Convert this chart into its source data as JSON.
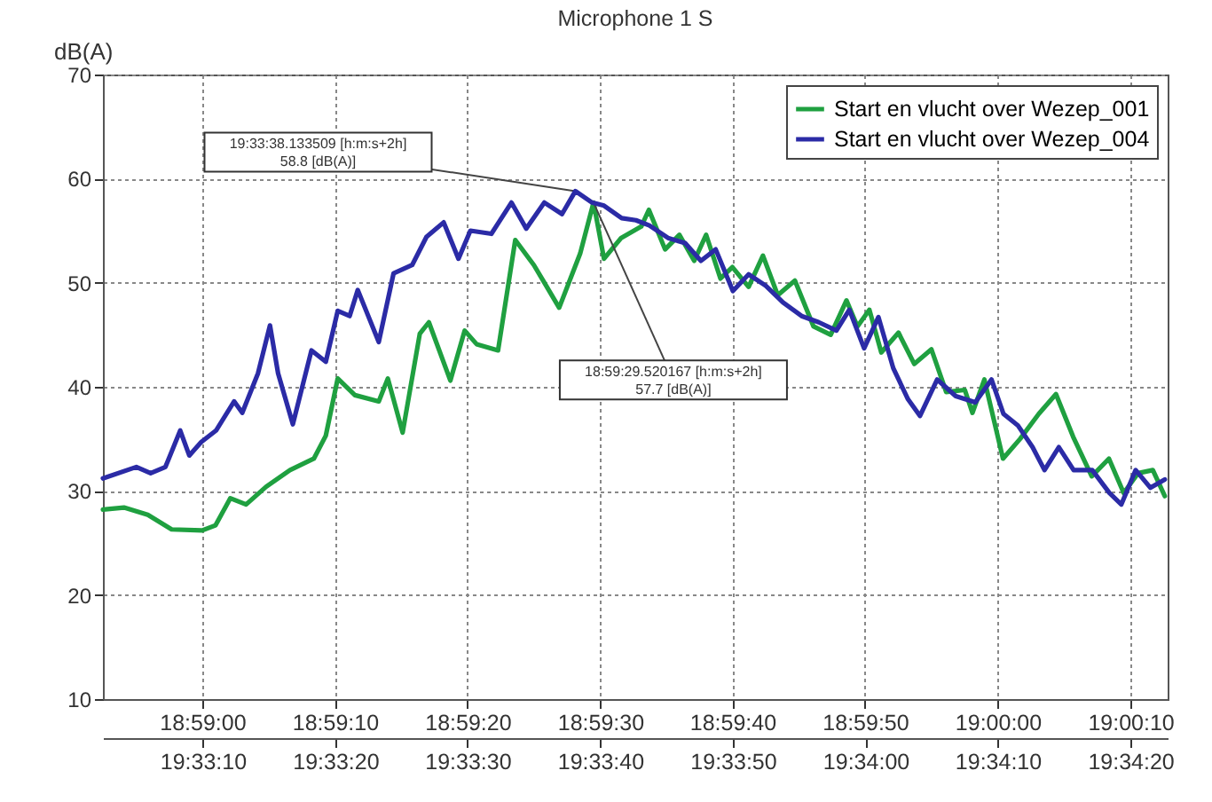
{
  "chart_data": {
    "type": "line",
    "title": "Microphone 1 S",
    "ylabel": "dB(A)",
    "xlim": [
      18.98125,
      19.00356
    ],
    "xticks": [
      {
        "value": 18.98333,
        "label": "18:59:00"
      },
      {
        "value": 18.98611,
        "label": "18:59:10"
      },
      {
        "value": 18.98889,
        "label": "18:59:20"
      },
      {
        "value": 18.99167,
        "label": "18:59:30"
      },
      {
        "value": 18.99444,
        "label": "18:59:40"
      },
      {
        "value": 18.99722,
        "label": "18:59:50"
      },
      {
        "value": 19.0,
        "label": "19:00:00"
      },
      {
        "value": 19.00278,
        "label": "19:00:10"
      }
    ],
    "x2lim": [
      19.55069,
      19.573
    ],
    "x2ticks": [
      {
        "value": 19.55278,
        "label": "19:33:10"
      },
      {
        "value": 19.55556,
        "label": "19:33:20"
      },
      {
        "value": 19.55833,
        "label": "19:33:30"
      },
      {
        "value": 19.56111,
        "label": "19:33:40"
      },
      {
        "value": 19.56389,
        "label": "19:33:50"
      },
      {
        "value": 19.56667,
        "label": "19:34:00"
      },
      {
        "value": 19.56944,
        "label": "19:34:10"
      },
      {
        "value": 19.57222,
        "label": "19:34:20"
      }
    ],
    "ylim": [
      10,
      70
    ],
    "yticks": [
      10,
      20,
      30,
      40,
      50,
      60,
      70
    ],
    "grid": true,
    "legend": "top right",
    "series": [
      {
        "name": "Start en vlucht over Wezep_001",
        "color": "#1fa040",
        "x": [
          18.98125,
          18.98169,
          18.98219,
          18.98269,
          18.98333,
          18.98361,
          18.98392,
          18.98425,
          18.98467,
          18.98517,
          18.98567,
          18.98592,
          18.98617,
          18.98653,
          18.98703,
          18.98722,
          18.98753,
          18.98789,
          18.98808,
          18.98853,
          18.98883,
          18.98908,
          18.98953,
          18.98989,
          18.99028,
          18.9905,
          18.99081,
          18.99125,
          18.99153,
          18.99175,
          18.99211,
          18.99253,
          18.99269,
          18.99303,
          18.99333,
          18.99364,
          18.99389,
          18.99419,
          18.99444,
          18.99478,
          18.99508,
          18.99539,
          18.99575,
          18.99614,
          18.9965,
          18.99683,
          18.99706,
          18.99731,
          18.99756,
          18.99792,
          18.99825,
          18.99861,
          18.99892,
          18.99931,
          18.99947,
          18.99972,
          19.00011,
          19.00047,
          19.00086,
          19.00122,
          19.00158,
          19.00197,
          19.00233,
          19.00264,
          19.00294,
          19.00325,
          19.0035
        ],
        "values": [
          28.2,
          28.4,
          27.7,
          26.3,
          26.2,
          26.7,
          29.3,
          28.7,
          30.4,
          32.0,
          33.1,
          35.3,
          40.8,
          39.2,
          38.6,
          40.8,
          35.6,
          45.1,
          46.2,
          40.6,
          45.4,
          44.1,
          43.5,
          54.1,
          51.7,
          50.0,
          47.6,
          52.8,
          57.7,
          52.3,
          54.3,
          55.4,
          57.0,
          53.2,
          54.6,
          52.1,
          54.6,
          50.4,
          51.5,
          49.6,
          52.6,
          48.8,
          50.2,
          45.8,
          45.0,
          48.3,
          45.8,
          47.4,
          43.3,
          45.2,
          42.2,
          43.6,
          39.5,
          39.7,
          37.5,
          40.7,
          33.1,
          35.0,
          37.4,
          39.3,
          35.2,
          31.4,
          33.1,
          29.8,
          31.7,
          32.0,
          29.5
        ]
      },
      {
        "name": "Start en vlucht over Wezep_004",
        "color": "#2b2ba6",
        "axis": "x2",
        "x": [
          19.55069,
          19.55139,
          19.55169,
          19.552,
          19.55231,
          19.5525,
          19.55275,
          19.55306,
          19.55344,
          19.55361,
          19.55394,
          19.55419,
          19.55436,
          19.55467,
          19.55506,
          19.55536,
          19.55561,
          19.55586,
          19.55603,
          19.55647,
          19.55678,
          19.55717,
          19.55747,
          19.55783,
          19.55814,
          19.55839,
          19.55883,
          19.55925,
          19.55956,
          19.55994,
          19.56031,
          19.56059,
          19.56094,
          19.56119,
          19.56156,
          19.56186,
          19.56214,
          19.56253,
          19.56289,
          19.56322,
          19.56353,
          19.56389,
          19.56422,
          19.56458,
          19.56494,
          19.56533,
          19.56569,
          19.56606,
          19.56633,
          19.56664,
          19.56694,
          19.56725,
          19.56756,
          19.56781,
          19.56817,
          19.56856,
          19.56897,
          19.56931,
          19.56956,
          19.56986,
          19.57017,
          19.57042,
          19.57072,
          19.57103,
          19.57142,
          19.57178,
          19.57203,
          19.57233,
          19.57264,
          19.57294
        ],
        "values": [
          31.2,
          32.3,
          31.7,
          32.3,
          35.8,
          33.4,
          34.7,
          35.8,
          38.6,
          37.5,
          41.3,
          45.9,
          41.3,
          36.4,
          43.5,
          42.4,
          47.3,
          46.8,
          49.3,
          44.3,
          50.9,
          51.7,
          54.4,
          55.8,
          52.3,
          55.0,
          54.7,
          57.7,
          55.2,
          57.7,
          56.6,
          58.8,
          57.7,
          57.4,
          56.2,
          56.0,
          55.5,
          54.3,
          53.8,
          52.1,
          53.2,
          49.2,
          50.8,
          49.7,
          48.1,
          46.8,
          46.2,
          45.4,
          47.4,
          43.7,
          46.7,
          41.8,
          38.8,
          37.2,
          40.7,
          39.1,
          38.5,
          40.7,
          37.4,
          36.3,
          34.2,
          32.0,
          34.2,
          32.0,
          32.0,
          29.8,
          28.7,
          32.0,
          30.3,
          31.1
        ]
      }
    ],
    "annotations": [
      {
        "text": "19:33:38.133509 [h:m:s+2h]\n58.8 [dB(A)]",
        "x": 18.99115,
        "y": 58.8
      },
      {
        "text": "18:59:29.520167 [h:m:s+2h]\n57.7 [dB(A)]",
        "x": 18.99153,
        "y": 57.7
      }
    ]
  }
}
